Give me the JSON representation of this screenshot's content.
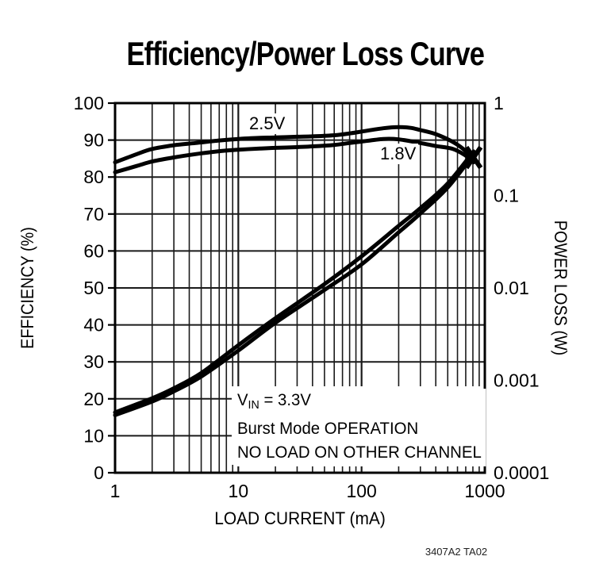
{
  "title": "Efficiency/Power Loss Curve",
  "footer_code": "3407A2 TA02",
  "axes": {
    "x": {
      "label": "LOAD CURRENT (mA)",
      "scale": "log",
      "min": 1,
      "max": 1000,
      "ticks": [
        "1",
        "10",
        "100",
        "1000"
      ]
    },
    "y_left": {
      "label": "EFFICIENCY (%)",
      "scale": "linear",
      "min": 0,
      "max": 100,
      "ticks": [
        "100",
        "90",
        "80",
        "70",
        "60",
        "50",
        "40",
        "30",
        "20",
        "10",
        "0"
      ]
    },
    "y_right": {
      "label": "POWER LOSS (W)",
      "scale": "log",
      "min": 0.0001,
      "max": 1,
      "ticks": [
        "1",
        "0.1",
        "0.01",
        "0.001",
        "0.0001"
      ]
    }
  },
  "curve_labels": {
    "v25": "2.5V",
    "v18": "1.8V"
  },
  "annotation": {
    "line1_main": "V",
    "line1_sub": "IN",
    "line1_rest": " = 3.3V",
    "line2": "Burst Mode OPERATION",
    "line3": "NO LOAD ON OTHER CHANNEL"
  },
  "colors": {
    "ink": "#000000",
    "grid": "#1a1a1a",
    "background": "#ffffff"
  },
  "chart_data": {
    "type": "line",
    "title": "Efficiency/Power Loss Curve",
    "xlabel": "LOAD CURRENT (mA)",
    "x_scale": "log",
    "x_range": [
      1,
      1000
    ],
    "ylabel_left": "EFFICIENCY (%)",
    "y_left_range": [
      0,
      100
    ],
    "ylabel_right": "POWER LOSS (W)",
    "y_right_scale": "log",
    "y_right_range": [
      0.0001,
      1
    ],
    "grid": true,
    "end_marker": "x-at-curve-end",
    "series": [
      {
        "name": "Efficiency 2.5V",
        "axis": "left",
        "units": [
          "mA",
          "%"
        ],
        "points": [
          [
            1,
            84.0
          ],
          [
            1.5,
            86.2
          ],
          [
            2,
            87.6
          ],
          [
            3,
            88.6
          ],
          [
            4.5,
            89.2
          ],
          [
            7,
            89.9
          ],
          [
            10,
            90.3
          ],
          [
            15,
            90.6
          ],
          [
            20,
            90.7
          ],
          [
            30,
            90.9
          ],
          [
            40,
            91.0
          ],
          [
            60,
            91.3
          ],
          [
            80,
            91.8
          ],
          [
            100,
            92.3
          ],
          [
            150,
            93.2
          ],
          [
            200,
            93.5
          ],
          [
            250,
            93.3
          ],
          [
            300,
            92.7
          ],
          [
            400,
            91.6
          ],
          [
            550,
            89.5
          ],
          [
            700,
            87.0
          ],
          [
            810,
            84.0
          ]
        ]
      },
      {
        "name": "Efficiency 1.8V",
        "axis": "left",
        "units": [
          "mA",
          "%"
        ],
        "points": [
          [
            1,
            81.3
          ],
          [
            1.5,
            83.0
          ],
          [
            2,
            84.2
          ],
          [
            3,
            85.3
          ],
          [
            4.5,
            86.2
          ],
          [
            7,
            87.0
          ],
          [
            10,
            87.4
          ],
          [
            15,
            87.7
          ],
          [
            20,
            87.9
          ],
          [
            30,
            88.1
          ],
          [
            40,
            88.3
          ],
          [
            60,
            88.7
          ],
          [
            80,
            89.2
          ],
          [
            100,
            89.6
          ],
          [
            150,
            90.3
          ],
          [
            200,
            90.2
          ],
          [
            300,
            89.2
          ],
          [
            400,
            88.4
          ],
          [
            550,
            87.6
          ],
          [
            700,
            85.8
          ],
          [
            810,
            84.2
          ]
        ]
      },
      {
        "name": "Power Loss 2.5V",
        "axis": "right",
        "units": [
          "mA",
          "W"
        ],
        "points": [
          [
            1,
            0.00045
          ],
          [
            2,
            0.00064
          ],
          [
            3,
            0.00082
          ],
          [
            5,
            0.0012
          ],
          [
            10,
            0.0024
          ],
          [
            20,
            0.0047
          ],
          [
            50,
            0.011
          ],
          [
            100,
            0.022
          ],
          [
            200,
            0.047
          ],
          [
            300,
            0.073
          ],
          [
            500,
            0.135
          ],
          [
            810,
            0.3
          ]
        ]
      },
      {
        "name": "Power Loss 1.8V",
        "axis": "right",
        "units": [
          "mA",
          "W"
        ],
        "points": [
          [
            1,
            0.00042
          ],
          [
            2,
            0.00059
          ],
          [
            3,
            0.00076
          ],
          [
            5,
            0.0011
          ],
          [
            10,
            0.0021
          ],
          [
            20,
            0.0042
          ],
          [
            50,
            0.0095
          ],
          [
            100,
            0.018
          ],
          [
            200,
            0.04
          ],
          [
            300,
            0.064
          ],
          [
            500,
            0.122
          ],
          [
            810,
            0.28
          ]
        ]
      }
    ]
  }
}
